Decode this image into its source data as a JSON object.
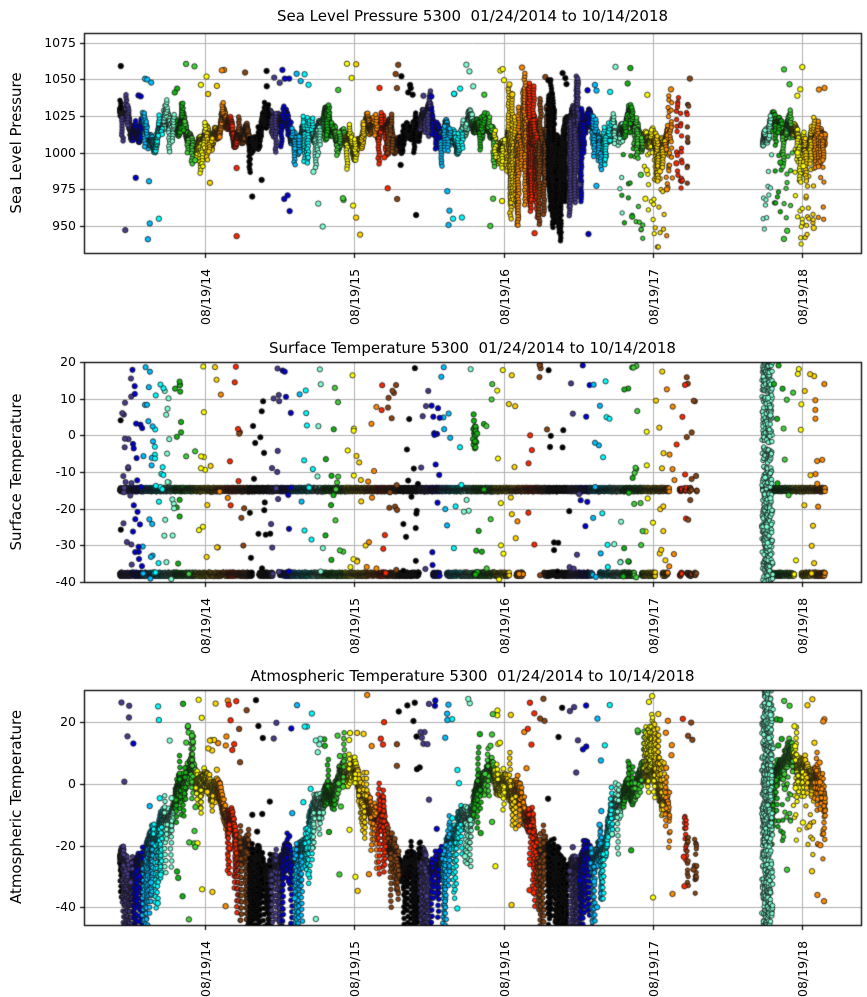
{
  "figure": {
    "background": "#ffffff",
    "grid_color": "#b0b0b0",
    "spine_color": "#000000",
    "marker_edge_color": "#141414",
    "text_color": "#000000"
  },
  "color_cycle": [
    "#000000",
    "#483d8b",
    "#0000cd",
    "#00bfff",
    "#00ffff",
    "#7fffd4",
    "#11b411",
    "#3fd435",
    "#ffff00",
    "#ffd700",
    "#ff8c00",
    "#ff2800",
    "#8b4513",
    "#000000"
  ],
  "timeline": {
    "start_date": "01/24/2014",
    "end_date": "10/14/2018",
    "span_days": 1724,
    "xlim_days": [
      -88,
      1812
    ],
    "xticks": [
      {
        "label": "08/19/14",
        "day": 207
      },
      {
        "label": "08/19/15",
        "day": 572
      },
      {
        "label": "08/19/16",
        "day": 938
      },
      {
        "label": "08/19/17",
        "day": 1303
      },
      {
        "label": "08/19/18",
        "day": 1668
      }
    ],
    "sparse_window_days": [
      1340,
      1411
    ],
    "data_gap_days": [
      1411,
      1572
    ],
    "burst_window_days": [
      1572,
      1594
    ],
    "color_segment_days": 26.09,
    "doy_offset": 23
  },
  "chart_data": [
    {
      "id": "sea-level-pressure",
      "type": "scatter",
      "title": "Sea Level Pressure 5300  01/24/2014 to 10/14/2018",
      "ylabel": "Sea Level Pressure",
      "xlabel": "",
      "grid": true,
      "yticks": [
        1075,
        1050,
        1025,
        1000,
        975,
        950
      ],
      "ylim": [
        931.5,
        1081.5
      ],
      "pattern": "pressure-band",
      "band_mean": 1014,
      "band_jitter": 2.2,
      "storm_window_days": [
        950,
        1130
      ],
      "fan_windows_days": [
        [
          1220,
          1411
        ],
        [
          1572,
          1724
        ]
      ],
      "outlier_count": 135,
      "outlier_high_range": [
        1038,
        1061
      ],
      "outlier_low_range": [
        938,
        1000
      ],
      "seed": 11
    },
    {
      "id": "surface-temperature",
      "type": "scatter",
      "title": "Surface Temperature 5300  01/24/2014 to 10/14/2018",
      "ylabel": "Surface Temperature",
      "xlabel": "",
      "grid": true,
      "yticks": [
        20,
        10,
        0,
        -10,
        -20,
        -30,
        -40
      ],
      "ylim": [
        -40,
        20
      ],
      "pattern": "quantized-lines",
      "line_levels": [
        -14.8,
        -37.9
      ],
      "blob": {
        "day": 868,
        "value": 0,
        "count": 26
      },
      "outlier_count": 470,
      "outlier_range": [
        -39.5,
        20
      ],
      "seed": 22
    },
    {
      "id": "atmospheric-temperature",
      "type": "scatter",
      "title": "Atmospheric Temperature 5300  01/24/2014 to 10/14/2018",
      "ylabel": "Atmospheric Temperature",
      "xlabel": "",
      "grid": true,
      "yticks": [
        20,
        0,
        -20,
        -40
      ],
      "ylim": [
        -45.8,
        30.5
      ],
      "pattern": "seasonal-wave",
      "season_mean": -12,
      "season_amp": 15,
      "season_peak_day": 188,
      "noise": 2.0,
      "warm_spike_window_days": [
        1285,
        1325
      ],
      "post_burst_bias": 5,
      "outlier_count": 240,
      "outlier_range": [
        -44,
        29
      ],
      "seed": 33
    }
  ]
}
